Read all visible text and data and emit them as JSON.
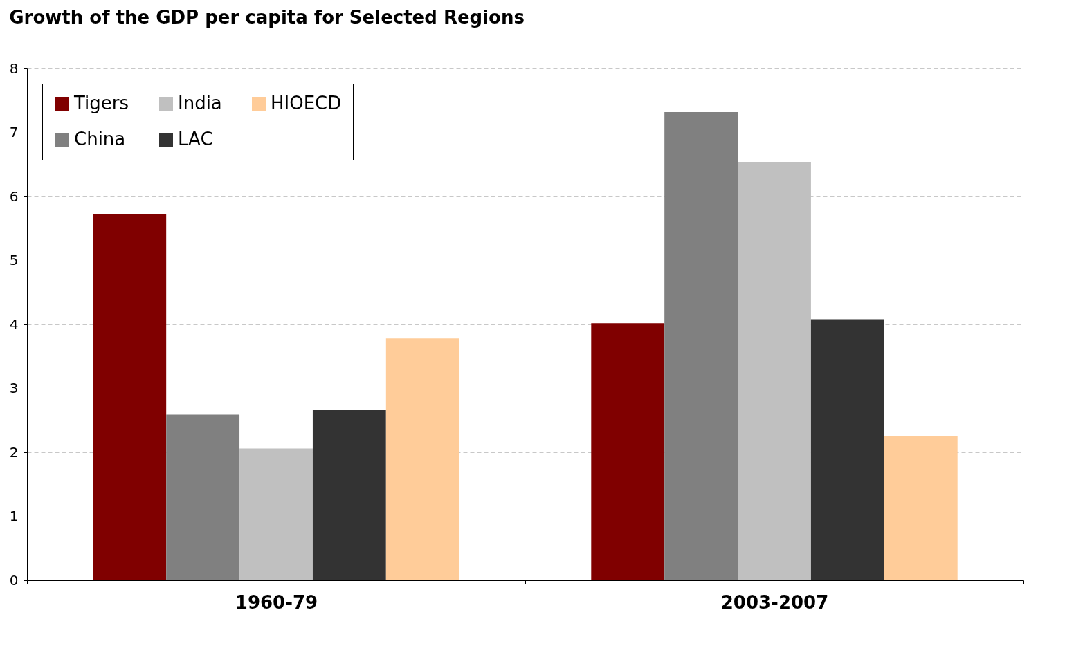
{
  "chart_data": {
    "type": "bar",
    "title": "Growth of the GDP per capita for Selected Regions",
    "categories": [
      "1960-79",
      "2003-2007"
    ],
    "series": [
      {
        "name": "Tigers",
        "color": "#800000",
        "values": [
          5.72,
          4.02
        ]
      },
      {
        "name": "China",
        "color": "#808080",
        "values": [
          2.59,
          7.32
        ]
      },
      {
        "name": "India",
        "color": "#c0c0c0",
        "values": [
          2.06,
          6.54
        ]
      },
      {
        "name": "LAC",
        "color": "#333333",
        "values": [
          2.66,
          4.08
        ]
      },
      {
        "name": "HIOECD",
        "color": "#ffcc99",
        "values": [
          3.78,
          2.26
        ]
      }
    ],
    "ylim": [
      0,
      8
    ],
    "yticks": [
      0,
      1,
      2,
      3,
      4,
      5,
      6,
      7,
      8
    ],
    "grid": "y",
    "legend": "top left"
  }
}
